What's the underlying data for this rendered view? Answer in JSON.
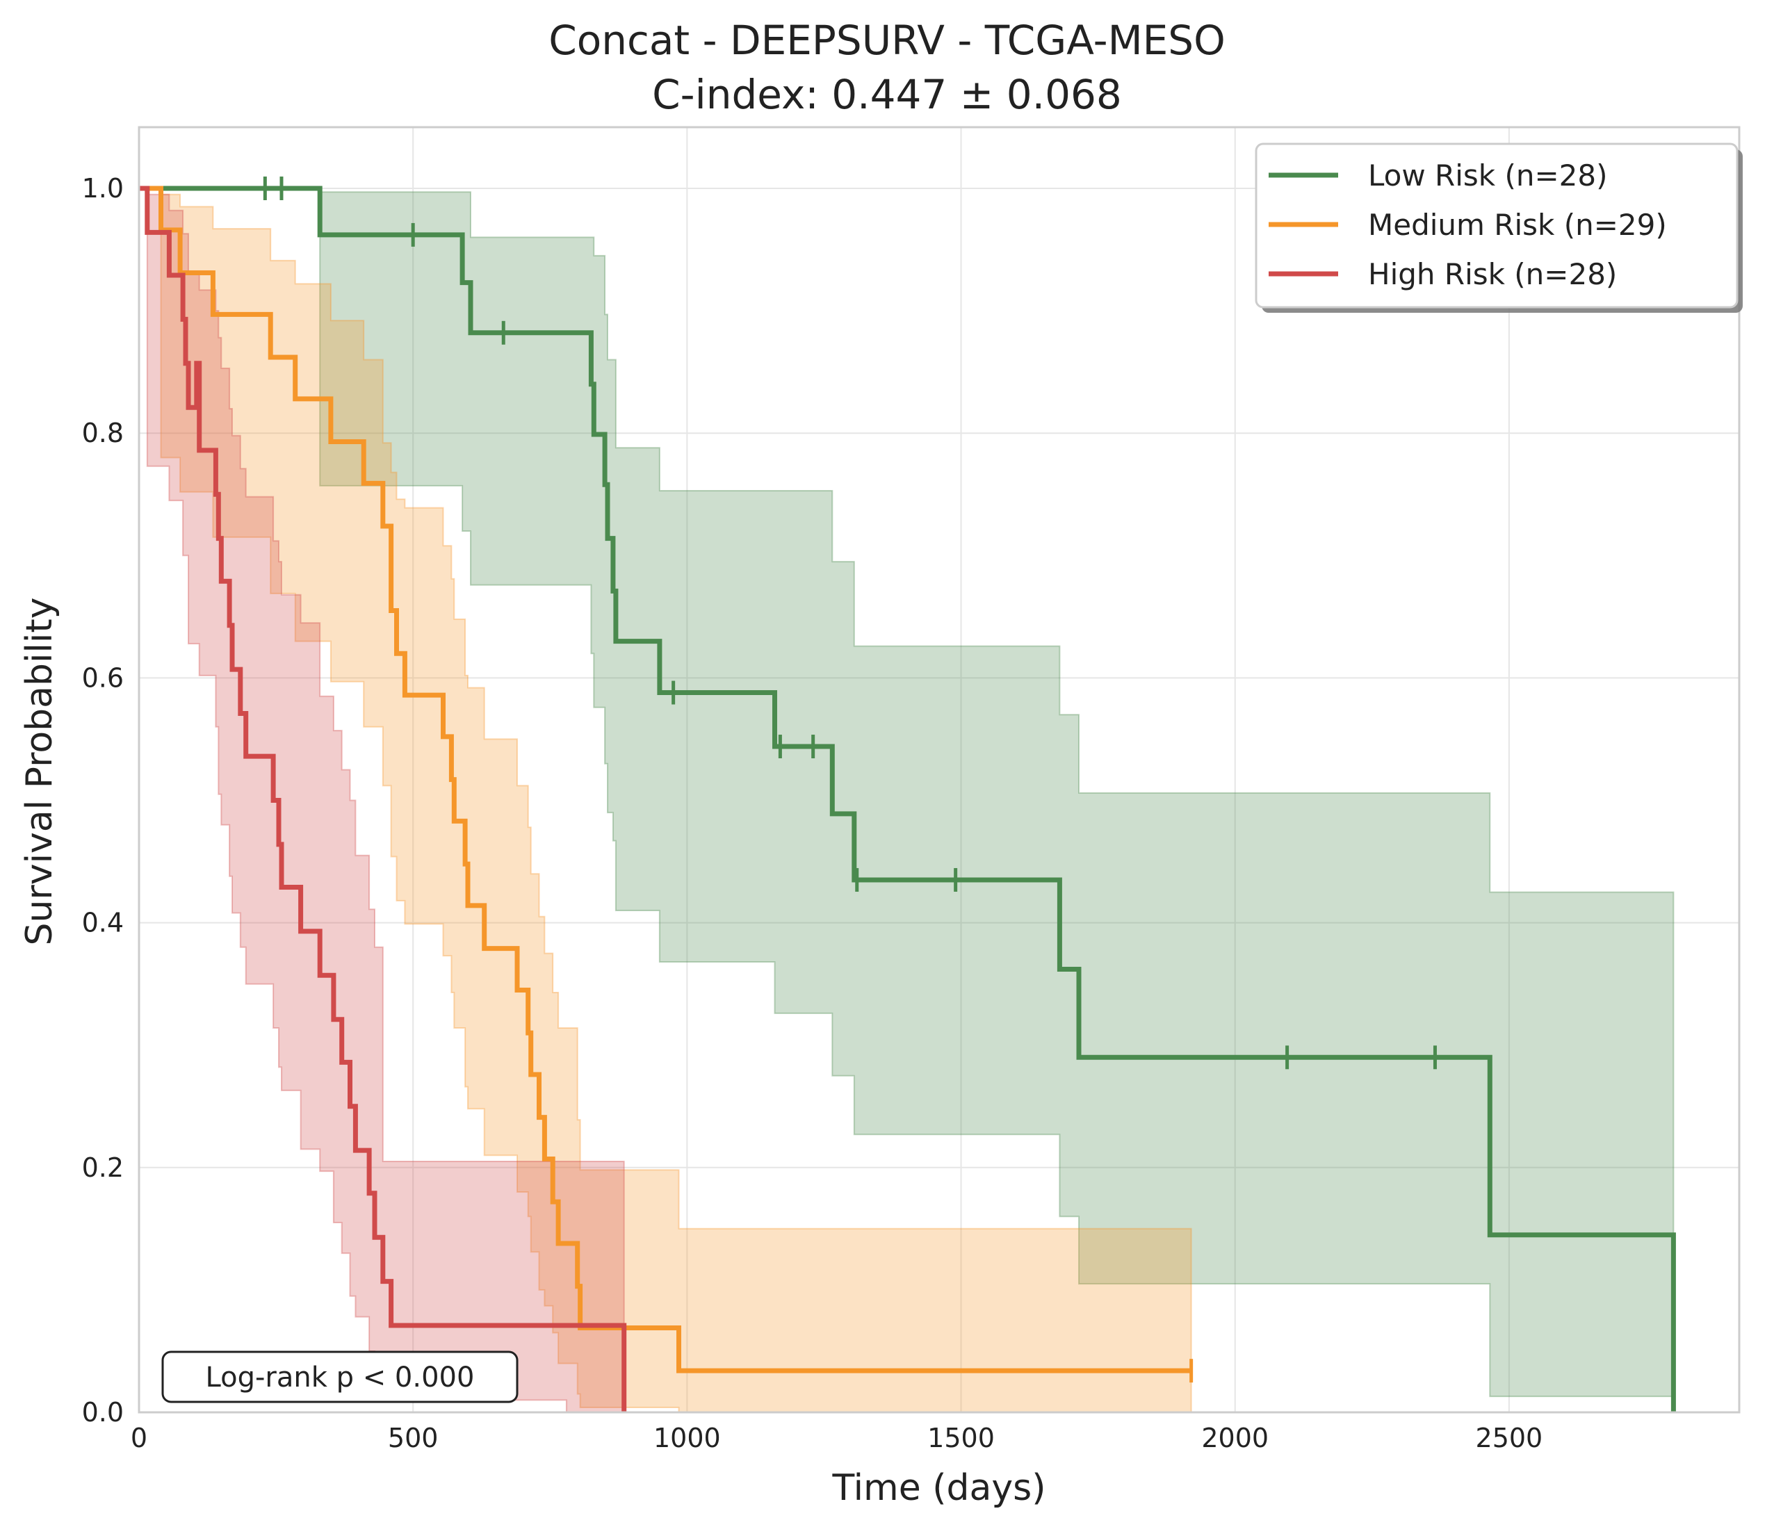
{
  "chart_data": {
    "type": "line",
    "subtype": "kaplan-meier",
    "title": "Concat - DEEPSURV - TCGA-MESO",
    "subtitle": "C-index: 0.447 ± 0.068",
    "xlabel": "Time (days)",
    "ylabel": "Survival Probability",
    "xlim": [
      0,
      2920
    ],
    "ylim": [
      0,
      1.05
    ],
    "xticks": [
      0,
      500,
      1000,
      1500,
      2000,
      2500
    ],
    "xtick_labels": [
      "0",
      "500",
      "1000",
      "1500",
      "2000",
      "2500"
    ],
    "yticks": [
      0.0,
      0.2,
      0.4,
      0.6,
      0.8,
      1.0
    ],
    "ytick_labels": [
      "0.0",
      "0.2",
      "0.4",
      "0.6",
      "0.8",
      "1.0"
    ],
    "grid": true,
    "legend_position": "top-right",
    "annotation": "Log-rank p < 0.000",
    "series": [
      {
        "name": "Low Risk (n=28)",
        "color": "#4a8a4e",
        "steps": [
          [
            0,
            1.0
          ],
          [
            330,
            0.962
          ],
          [
            590,
            0.923
          ],
          [
            605,
            0.882
          ],
          [
            825,
            0.84
          ],
          [
            830,
            0.799
          ],
          [
            850,
            0.758
          ],
          [
            855,
            0.714
          ],
          [
            865,
            0.671
          ],
          [
            870,
            0.63
          ],
          [
            950,
            0.588
          ],
          [
            1160,
            0.544
          ],
          [
            1265,
            0.489
          ],
          [
            1305,
            0.435
          ],
          [
            1680,
            0.362
          ],
          [
            1715,
            0.29
          ],
          [
            2465,
            0.145
          ],
          [
            2800,
            0.0
          ]
        ],
        "ci": [
          [
            0,
            1.0,
            1.0
          ],
          [
            330,
            0.997,
            0.757
          ],
          [
            590,
            0.997,
            0.72
          ],
          [
            605,
            0.96,
            0.676
          ],
          [
            825,
            0.96,
            0.62
          ],
          [
            830,
            0.945,
            0.576
          ],
          [
            850,
            0.897,
            0.53
          ],
          [
            855,
            0.86,
            0.49
          ],
          [
            865,
            0.86,
            0.467
          ],
          [
            870,
            0.788,
            0.41
          ],
          [
            950,
            0.753,
            0.368
          ],
          [
            1160,
            0.753,
            0.326
          ],
          [
            1265,
            0.695,
            0.275
          ],
          [
            1305,
            0.626,
            0.227
          ],
          [
            1680,
            0.57,
            0.16
          ],
          [
            1715,
            0.506,
            0.105
          ],
          [
            2465,
            0.425,
            0.013
          ]
        ],
        "censored": [
          [
            230,
            1.0
          ],
          [
            260,
            1.0
          ],
          [
            500,
            0.962
          ],
          [
            665,
            0.882
          ],
          [
            975,
            0.588
          ],
          [
            1170,
            0.544
          ],
          [
            1230,
            0.544
          ],
          [
            1310,
            0.435
          ],
          [
            1490,
            0.435
          ],
          [
            2095,
            0.29
          ],
          [
            2365,
            0.29
          ]
        ]
      },
      {
        "name": "Medium Risk (n=29)",
        "color": "#f5962a",
        "steps": [
          [
            0,
            1.0
          ],
          [
            40,
            0.966
          ],
          [
            75,
            0.931
          ],
          [
            135,
            0.897
          ],
          [
            240,
            0.862
          ],
          [
            285,
            0.828
          ],
          [
            350,
            0.793
          ],
          [
            410,
            0.759
          ],
          [
            445,
            0.724
          ],
          [
            460,
            0.655
          ],
          [
            470,
            0.62
          ],
          [
            485,
            0.586
          ],
          [
            555,
            0.552
          ],
          [
            570,
            0.517
          ],
          [
            575,
            0.483
          ],
          [
            595,
            0.448
          ],
          [
            600,
            0.414
          ],
          [
            630,
            0.379
          ],
          [
            690,
            0.345
          ],
          [
            710,
            0.31
          ],
          [
            715,
            0.276
          ],
          [
            730,
            0.241
          ],
          [
            740,
            0.207
          ],
          [
            755,
            0.172
          ],
          [
            765,
            0.138
          ],
          [
            800,
            0.103
          ],
          [
            805,
            0.069
          ],
          [
            985,
            0.034
          ],
          [
            1920,
            0.034
          ]
        ],
        "ci": [
          [
            0,
            1.0,
            1.0
          ],
          [
            40,
            0.995,
            0.78
          ],
          [
            75,
            0.985,
            0.752
          ],
          [
            135,
            0.967,
            0.715
          ],
          [
            240,
            0.941,
            0.669
          ],
          [
            285,
            0.922,
            0.63
          ],
          [
            350,
            0.892,
            0.597
          ],
          [
            410,
            0.86,
            0.56
          ],
          [
            445,
            0.792,
            0.512
          ],
          [
            460,
            0.768,
            0.454
          ],
          [
            470,
            0.746,
            0.418
          ],
          [
            485,
            0.739,
            0.399
          ],
          [
            555,
            0.708,
            0.373
          ],
          [
            570,
            0.681,
            0.343
          ],
          [
            575,
            0.648,
            0.314
          ],
          [
            595,
            0.602,
            0.266
          ],
          [
            600,
            0.592,
            0.248
          ],
          [
            630,
            0.55,
            0.21
          ],
          [
            690,
            0.512,
            0.18
          ],
          [
            710,
            0.478,
            0.16
          ],
          [
            715,
            0.44,
            0.131
          ],
          [
            730,
            0.405,
            0.1
          ],
          [
            740,
            0.375,
            0.087
          ],
          [
            755,
            0.343,
            0.065
          ],
          [
            765,
            0.314,
            0.04
          ],
          [
            800,
            0.239,
            0.015
          ],
          [
            805,
            0.198,
            0.004
          ],
          [
            985,
            0.15,
            0.0
          ]
        ],
        "censored": [
          [
            1920,
            0.034
          ]
        ]
      },
      {
        "name": "High Risk (n=28)",
        "color": "#d04a4a",
        "steps": [
          [
            0,
            1.0
          ],
          [
            15,
            0.964
          ],
          [
            55,
            0.929
          ],
          [
            80,
            0.893
          ],
          [
            105,
            0.857
          ],
          [
            85,
            0.857
          ],
          [
            90,
            0.821
          ],
          [
            110,
            0.786
          ],
          [
            140,
            0.75
          ],
          [
            145,
            0.714
          ],
          [
            150,
            0.679
          ],
          [
            165,
            0.643
          ],
          [
            170,
            0.607
          ],
          [
            185,
            0.571
          ],
          [
            195,
            0.536
          ],
          [
            245,
            0.5
          ],
          [
            255,
            0.464
          ],
          [
            260,
            0.429
          ],
          [
            295,
            0.393
          ],
          [
            330,
            0.357
          ],
          [
            355,
            0.321
          ],
          [
            370,
            0.286
          ],
          [
            385,
            0.25
          ],
          [
            395,
            0.214
          ],
          [
            420,
            0.179
          ],
          [
            430,
            0.143
          ],
          [
            445,
            0.107
          ],
          [
            460,
            0.071
          ],
          [
            885,
            0.0
          ]
        ],
        "ci": [
          [
            0,
            1.0,
            1.0
          ],
          [
            15,
            0.995,
            0.773
          ],
          [
            55,
            0.982,
            0.745
          ],
          [
            80,
            0.963,
            0.7
          ],
          [
            90,
            0.93,
            0.628
          ],
          [
            110,
            0.917,
            0.602
          ],
          [
            140,
            0.9,
            0.56
          ],
          [
            145,
            0.878,
            0.505
          ],
          [
            150,
            0.853,
            0.48
          ],
          [
            165,
            0.82,
            0.438
          ],
          [
            170,
            0.798,
            0.408
          ],
          [
            185,
            0.771,
            0.38
          ],
          [
            195,
            0.748,
            0.35
          ],
          [
            245,
            0.712,
            0.314
          ],
          [
            255,
            0.695,
            0.282
          ],
          [
            260,
            0.668,
            0.263
          ],
          [
            295,
            0.645,
            0.215
          ],
          [
            330,
            0.585,
            0.197
          ],
          [
            355,
            0.557,
            0.155
          ],
          [
            370,
            0.525,
            0.13
          ],
          [
            385,
            0.5,
            0.095
          ],
          [
            395,
            0.455,
            0.078
          ],
          [
            420,
            0.411,
            0.05
          ],
          [
            430,
            0.38,
            0.033
          ],
          [
            445,
            0.205,
            0.024
          ],
          [
            460,
            0.205,
            0.01
          ],
          [
            780,
            0.205,
            0.0
          ]
        ],
        "censored": []
      }
    ]
  }
}
